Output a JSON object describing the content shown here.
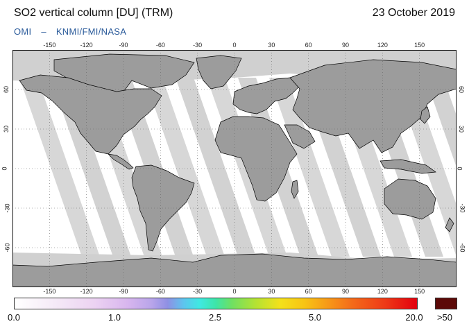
{
  "header": {
    "title": "SO2 vertical column [DU] (TRM)",
    "date": "23 October 2019",
    "credit_left": "OMI",
    "credit_sep": "–",
    "credit_right": "KNMI/FMI/NASA"
  },
  "map": {
    "projection": "equirectangular",
    "lon_range": [
      -180,
      180
    ],
    "lat_range": [
      -90,
      90
    ],
    "lon_ticks": [
      "-150",
      "-120",
      "-90",
      "-60",
      "-30",
      "0",
      "30",
      "60",
      "90",
      "120",
      "150"
    ],
    "lat_ticks": [
      "60",
      "30",
      "0",
      "-30",
      "-60"
    ],
    "colors": {
      "land": "#9c9c9c",
      "no_data": "#d0d0d0",
      "low_value": "#ffffff",
      "coast": "#000000",
      "grid": "#666666"
    }
  },
  "colorbar": {
    "labels": [
      "0.0",
      "1.0",
      "2.5",
      "5.0",
      "20.0"
    ],
    "overflow_label": ">50",
    "overflow_color": "#5c0a08"
  }
}
